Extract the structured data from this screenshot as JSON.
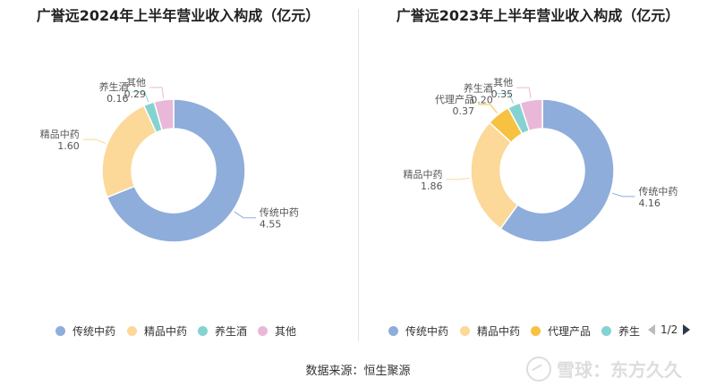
{
  "chart_data": [
    {
      "type": "pie",
      "title": "广誉远2024年上半年营业收入构成（亿元）",
      "series": [
        {
          "name": "传统中药",
          "value": 4.55,
          "label": "4.55",
          "color": "#8eaddb"
        },
        {
          "name": "精品中药",
          "value": 1.6,
          "label": "1.60",
          "color": "#fcd899"
        },
        {
          "name": "养生酒",
          "value": 0.16,
          "label": "0.16",
          "color": "#84d3d1"
        },
        {
          "name": "其他",
          "value": 0.29,
          "label": "0.29",
          "color": "#e9b8d8"
        }
      ],
      "legend": [
        "传统中药",
        "精品中药",
        "养生酒",
        "其他"
      ]
    },
    {
      "type": "pie",
      "title": "广誉远2023年上半年营业收入构成（亿元）",
      "series": [
        {
          "name": "传统中药",
          "value": 4.16,
          "label": "4.16",
          "color": "#8eaddb"
        },
        {
          "name": "精品中药",
          "value": 1.86,
          "label": "1.86",
          "color": "#fcd899"
        },
        {
          "name": "代理产品",
          "value": 0.37,
          "label": "0.37",
          "color": "#f7c241"
        },
        {
          "name": "养生酒",
          "value": 0.2,
          "label": "0.20",
          "color": "#84d3d1"
        },
        {
          "name": "其他",
          "value": 0.35,
          "label": "0.35",
          "color": "#e9b8d8"
        }
      ],
      "legend": [
        "传统中药",
        "精品中药",
        "代理产品",
        "养生"
      ],
      "legend_page": "1/2"
    }
  ],
  "source": "数据来源：恒生聚源",
  "watermark": "雪球：东方久久"
}
